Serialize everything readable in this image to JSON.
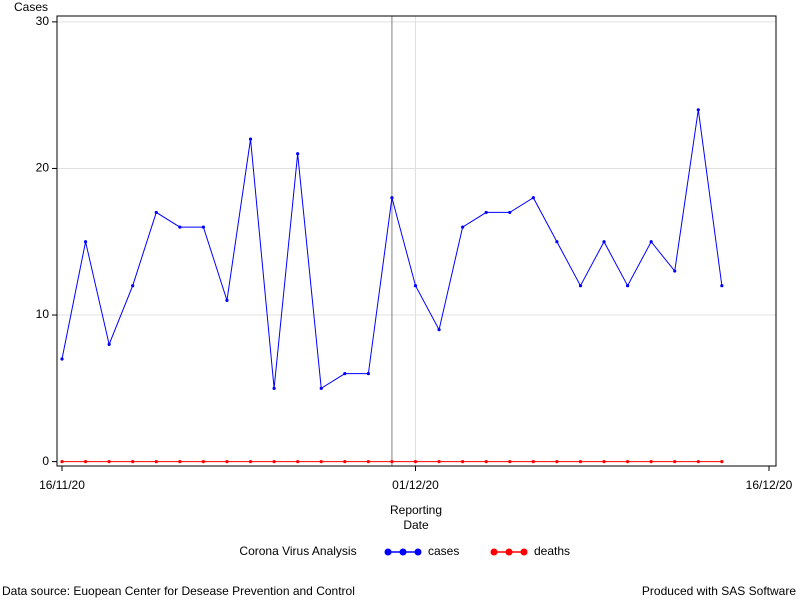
{
  "chart_data": {
    "type": "line",
    "y_label": "Cases",
    "x_label": [
      "Reporting",
      "Date"
    ],
    "legend_title": "Corona Virus Analysis",
    "x": [
      "16/11/20",
      "17/11/20",
      "18/11/20",
      "19/11/20",
      "20/11/20",
      "21/11/20",
      "22/11/20",
      "23/11/20",
      "24/11/20",
      "25/11/20",
      "26/11/20",
      "27/11/20",
      "28/11/20",
      "29/11/20",
      "30/11/20",
      "01/12/20",
      "02/12/20",
      "03/12/20",
      "04/12/20",
      "05/12/20",
      "06/12/20",
      "07/12/20",
      "08/12/20",
      "09/12/20",
      "10/12/20",
      "11/12/20",
      "12/12/20",
      "13/12/20",
      "14/12/20"
    ],
    "series": [
      {
        "name": "cases",
        "color": "#0000ff",
        "values": [
          7,
          15,
          8,
          12,
          17,
          16,
          16,
          11,
          22,
          5,
          21,
          5,
          6,
          6,
          18,
          12,
          9,
          16,
          17,
          17,
          18,
          15,
          12,
          15,
          12,
          15,
          13,
          24,
          12
        ]
      },
      {
        "name": "deaths",
        "color": "#ff0000",
        "values": [
          0,
          0,
          0,
          0,
          0,
          0,
          0,
          0,
          0,
          0,
          0,
          0,
          0,
          0,
          0,
          0,
          0,
          0,
          0,
          0,
          0,
          0,
          0,
          0,
          0,
          0,
          0,
          0,
          0
        ]
      }
    ],
    "xticks": [
      "16/11/20",
      "01/12/20",
      "16/12/20"
    ],
    "ylim": [
      -0.3,
      30.4
    ],
    "yticks": [
      0,
      10,
      20,
      30
    ],
    "grid": true,
    "reference_line_x": "30/11/20",
    "footnote_left": "Data source: Euopean Center for Desease Prevention and Control",
    "footnote_right": "Produced with SAS Software"
  }
}
